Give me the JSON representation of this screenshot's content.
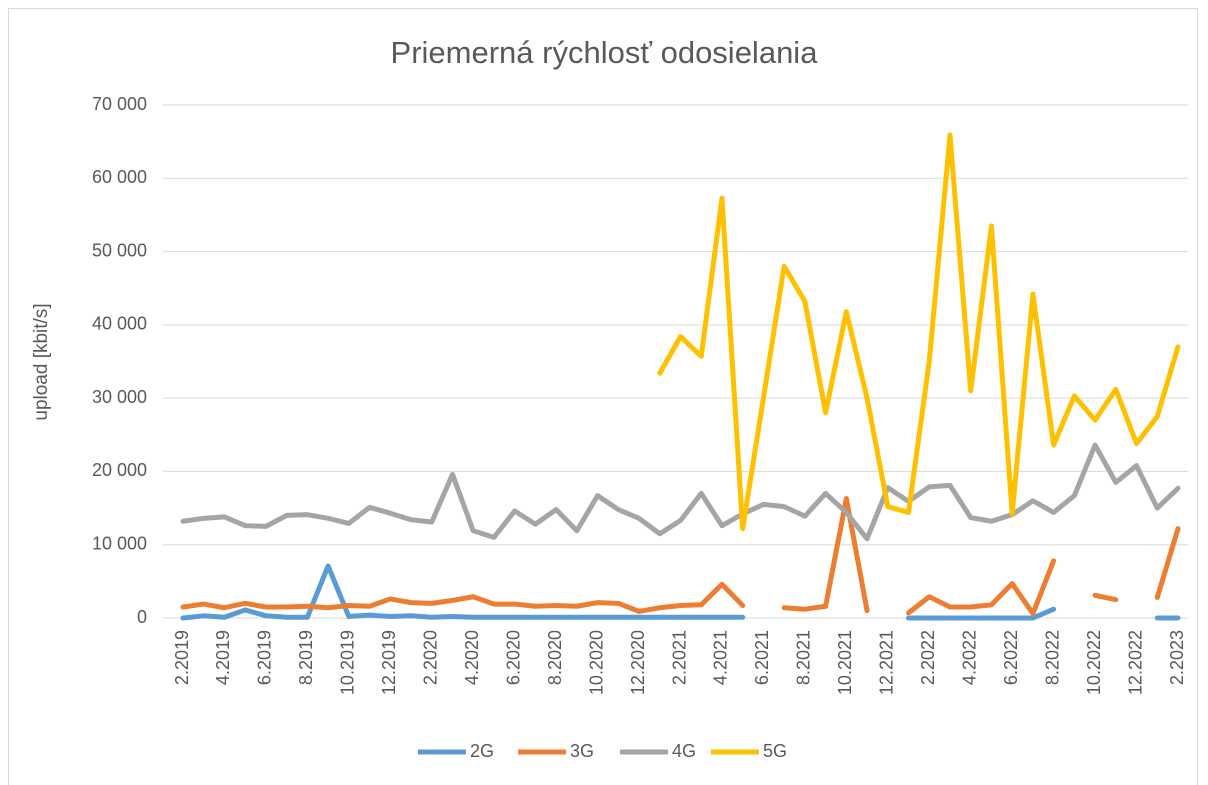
{
  "chart_data": {
    "type": "line",
    "title": "Priemerná rýchlosť odosielania",
    "ylabel": "upload [kbit/s]",
    "categories": [
      "2.2019",
      null,
      "4.2019",
      null,
      "6.2019",
      null,
      "8.2019",
      null,
      "10.2019",
      null,
      "12.2019",
      null,
      "2.2020",
      null,
      "4.2020",
      null,
      "6.2020",
      null,
      "8.2020",
      null,
      "10.2020",
      null,
      "12.2020",
      null,
      "2.2021",
      null,
      "4.2021",
      null,
      "6.2021",
      null,
      "8.2021",
      null,
      "10.2021",
      null,
      "12.2021",
      null,
      "2.2022",
      null,
      "4.2022",
      null,
      "6.2022",
      null,
      "8.2022",
      null,
      "10.2022",
      null,
      "12.2022",
      null,
      "2.2023"
    ],
    "series": [
      {
        "name": "2G",
        "color": "#5b9bd5",
        "values": [
          0,
          300,
          100,
          1100,
          300,
          100,
          100,
          7100,
          200,
          400,
          200,
          300,
          100,
          200,
          100,
          100,
          100,
          100,
          100,
          100,
          100,
          100,
          100,
          100,
          100,
          100,
          100,
          100,
          null,
          null,
          null,
          null,
          null,
          null,
          null,
          0,
          0,
          0,
          0,
          0,
          0,
          0,
          1200,
          null,
          null,
          null,
          null,
          0,
          0
        ]
      },
      {
        "name": "3G",
        "color": "#ed7d31",
        "values": [
          1500,
          1900,
          1400,
          2000,
          1500,
          1500,
          1600,
          1400,
          1700,
          1600,
          2600,
          2100,
          2000,
          2400,
          2900,
          1900,
          1900,
          1600,
          1700,
          1600,
          2100,
          2000,
          900,
          1400,
          1700,
          1800,
          4600,
          1700,
          null,
          1400,
          1200,
          1600,
          16300,
          1000,
          null,
          700,
          2900,
          1500,
          1500,
          1800,
          4700,
          600,
          7800,
          null,
          3100,
          2500,
          null,
          2800,
          12200
        ]
      },
      {
        "name": "4G",
        "color": "#a5a5a5",
        "values": [
          13200,
          13600,
          13800,
          12600,
          12500,
          14000,
          14100,
          13600,
          12900,
          15100,
          14300,
          13400,
          13100,
          19600,
          11900,
          11000,
          14600,
          12800,
          14800,
          11900,
          16700,
          14800,
          13600,
          11500,
          13300,
          17000,
          12600,
          14200,
          15500,
          15200,
          13900,
          17000,
          14400,
          10800,
          17800,
          15900,
          17900,
          18100,
          13700,
          13200,
          14100,
          16000,
          14400,
          16700,
          23600,
          18500,
          20800,
          15000,
          17700
        ]
      },
      {
        "name": "5G",
        "color": "#ffc000",
        "values": [
          null,
          null,
          null,
          null,
          null,
          null,
          null,
          null,
          null,
          null,
          null,
          null,
          null,
          null,
          null,
          null,
          null,
          null,
          null,
          null,
          null,
          null,
          null,
          33400,
          38400,
          35700,
          57300,
          12200,
          30000,
          48000,
          43200,
          28000,
          41800,
          30000,
          15200,
          14400,
          35000,
          65900,
          31000,
          53500,
          14200,
          44200,
          23600,
          30300,
          27000,
          31200,
          23800,
          27500,
          37000
        ]
      }
    ],
    "ylim": [
      0,
      70000
    ],
    "yticks": [
      0,
      {
        "value": 10000,
        "label": "10 000"
      },
      {
        "value": 20000,
        "label": "20 000"
      },
      {
        "value": 30000,
        "label": "30 000"
      },
      {
        "value": 40000,
        "label": "40 000"
      },
      {
        "value": 50000,
        "label": "50 000"
      },
      {
        "value": 60000,
        "label": "60 000"
      },
      {
        "value": 70000,
        "label": "70 000"
      }
    ],
    "grid": true,
    "legend": "bottom"
  }
}
